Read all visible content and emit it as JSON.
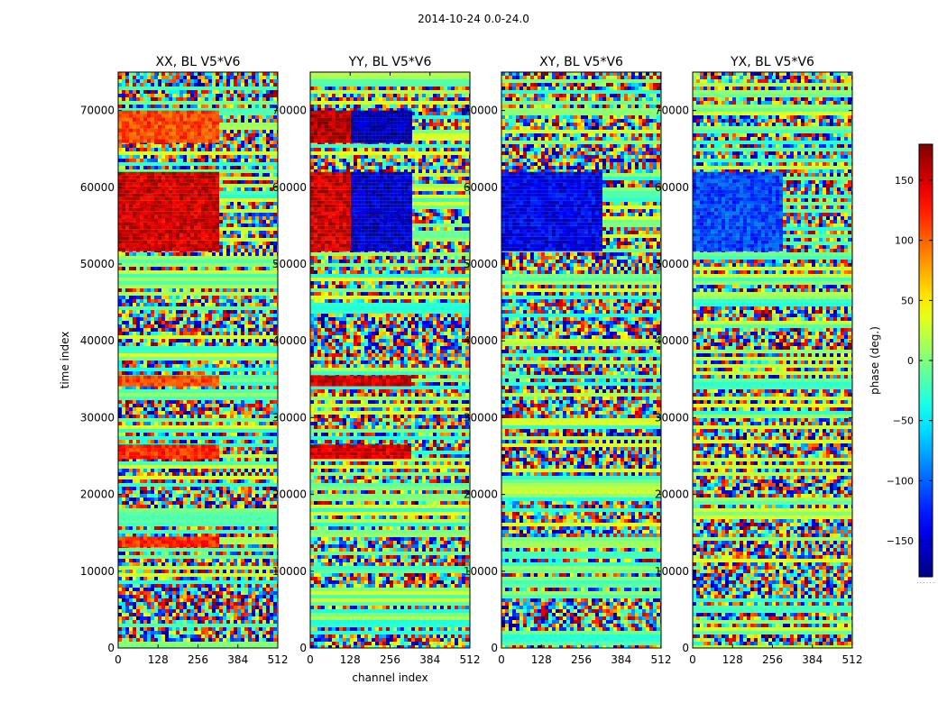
{
  "figure": {
    "suptitle": "2014-10-24 0.0-24.0",
    "dots": "......"
  },
  "chart_data": [
    {
      "type": "heatmap",
      "title": "XX, BL V5*V6",
      "xlabel": "",
      "ylabel": "time index",
      "xlim": [
        0,
        512
      ],
      "ylim": [
        0,
        75000
      ],
      "xticks": [
        0,
        128,
        256,
        384,
        512
      ],
      "yticks": [
        0,
        10000,
        20000,
        30000,
        40000,
        50000,
        60000,
        70000
      ],
      "bands": [
        {
          "y0": 52000,
          "y1": 62000,
          "x1": 320,
          "phase": 150
        },
        {
          "y0": 66000,
          "y1": 70000,
          "x1": 320,
          "phase": 110
        },
        {
          "y0": 25000,
          "y1": 26500,
          "x1": 320,
          "phase": 120
        },
        {
          "y0": 34500,
          "y1": 35500,
          "x1": 320,
          "phase": 110
        },
        {
          "y0": 13500,
          "y1": 14500,
          "x1": 320,
          "phase": 120
        }
      ]
    },
    {
      "type": "heatmap",
      "title": "YY, BL V5*V6",
      "xlabel": "channel index",
      "ylabel": "",
      "xlim": [
        0,
        512
      ],
      "ylim": [
        0,
        75000
      ],
      "xticks": [
        0,
        128,
        256,
        384,
        512
      ],
      "yticks": [
        0,
        10000,
        20000,
        30000,
        40000,
        50000,
        60000,
        70000
      ],
      "bands": [
        {
          "y0": 52000,
          "y1": 62000,
          "x1": 130,
          "phase": 150
        },
        {
          "y0": 52000,
          "y1": 62000,
          "x0": 130,
          "x1": 320,
          "phase": -150
        },
        {
          "y0": 66000,
          "y1": 70000,
          "x1": 130,
          "phase": 160
        },
        {
          "y0": 66000,
          "y1": 70000,
          "x0": 130,
          "x1": 320,
          "phase": -160
        },
        {
          "y0": 25000,
          "y1": 26500,
          "x1": 320,
          "phase": 150
        },
        {
          "y0": 34500,
          "y1": 35500,
          "x1": 320,
          "phase": 150
        }
      ]
    },
    {
      "type": "heatmap",
      "title": "XY, BL V5*V6",
      "xlabel": "",
      "ylabel": "",
      "xlim": [
        0,
        512
      ],
      "ylim": [
        0,
        75000
      ],
      "xticks": [
        0,
        128,
        256,
        384,
        512
      ],
      "yticks": [
        0,
        10000,
        20000,
        30000,
        40000,
        50000,
        60000,
        70000
      ],
      "bands": [
        {
          "y0": 52000,
          "y1": 62000,
          "x1": 320,
          "phase": -140
        }
      ]
    },
    {
      "type": "heatmap",
      "title": "YX, BL V5*V6",
      "xlabel": "",
      "ylabel": "",
      "xlim": [
        0,
        512
      ],
      "ylim": [
        0,
        75000
      ],
      "xticks": [
        0,
        128,
        256,
        384,
        512
      ],
      "yticks": [
        0,
        10000,
        20000,
        30000,
        40000,
        50000,
        60000,
        70000
      ],
      "bands": [
        {
          "y0": 52000,
          "y1": 62000,
          "x1": 280,
          "phase": -110
        }
      ]
    },
    {
      "type": "colorbar",
      "label": "phase (deg.)",
      "range": [
        -180,
        180
      ],
      "colormap": "jet",
      "ticks": [
        -150,
        -100,
        -50,
        0,
        50,
        100,
        150
      ]
    }
  ]
}
